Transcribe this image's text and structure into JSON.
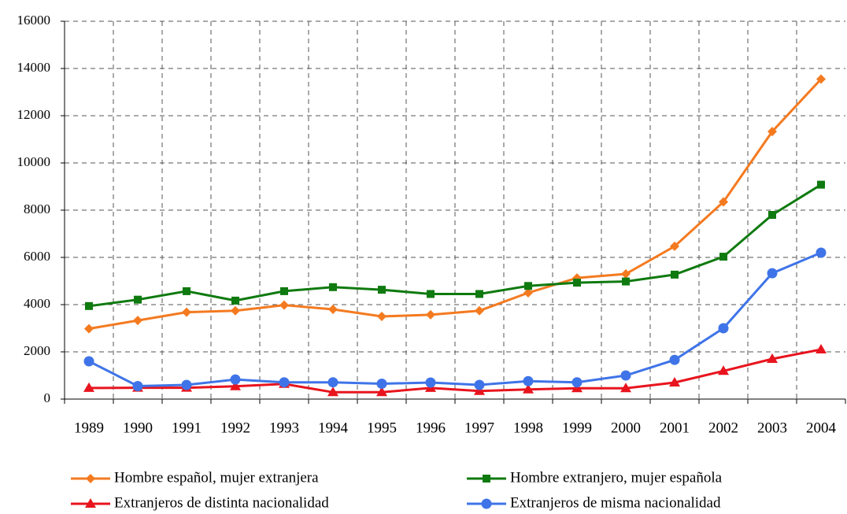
{
  "chart_data": {
    "type": "line",
    "categories": [
      "1989",
      "1990",
      "1991",
      "1992",
      "1993",
      "1994",
      "1995",
      "1996",
      "1997",
      "1998",
      "1999",
      "2000",
      "2001",
      "2002",
      "2003",
      "2004"
    ],
    "ylim": [
      0,
      16000
    ],
    "yticks": [
      0,
      2000,
      4000,
      6000,
      8000,
      10000,
      12000,
      14000,
      16000
    ],
    "grid": true,
    "series": [
      {
        "name": "Hombre español, mujer extranjera",
        "color": "#f47a20",
        "marker": "diamond",
        "values": [
          2980,
          3330,
          3680,
          3740,
          3980,
          3800,
          3500,
          3570,
          3740,
          4500,
          5130,
          5300,
          6470,
          8350,
          11330,
          13550
        ]
      },
      {
        "name": "Hombre extranjero, mujer española",
        "color": "#0f7a0f",
        "marker": "square",
        "values": [
          3940,
          4210,
          4570,
          4170,
          4570,
          4740,
          4630,
          4450,
          4450,
          4790,
          4930,
          4980,
          5270,
          6030,
          7800,
          9080
        ]
      },
      {
        "name": "Extranjeros de distinta nacionalidad",
        "color": "#e8141e",
        "marker": "triangle",
        "values": [
          470,
          480,
          480,
          540,
          640,
          290,
          290,
          470,
          340,
          410,
          460,
          460,
          700,
          1190,
          1700,
          2100
        ]
      },
      {
        "name": "Extranjeros de misma nacionalidad",
        "color": "#3f74e8",
        "marker": "circle",
        "values": [
          1600,
          550,
          600,
          830,
          710,
          710,
          650,
          700,
          600,
          760,
          710,
          1000,
          1660,
          3000,
          5330,
          6200
        ]
      }
    ]
  }
}
